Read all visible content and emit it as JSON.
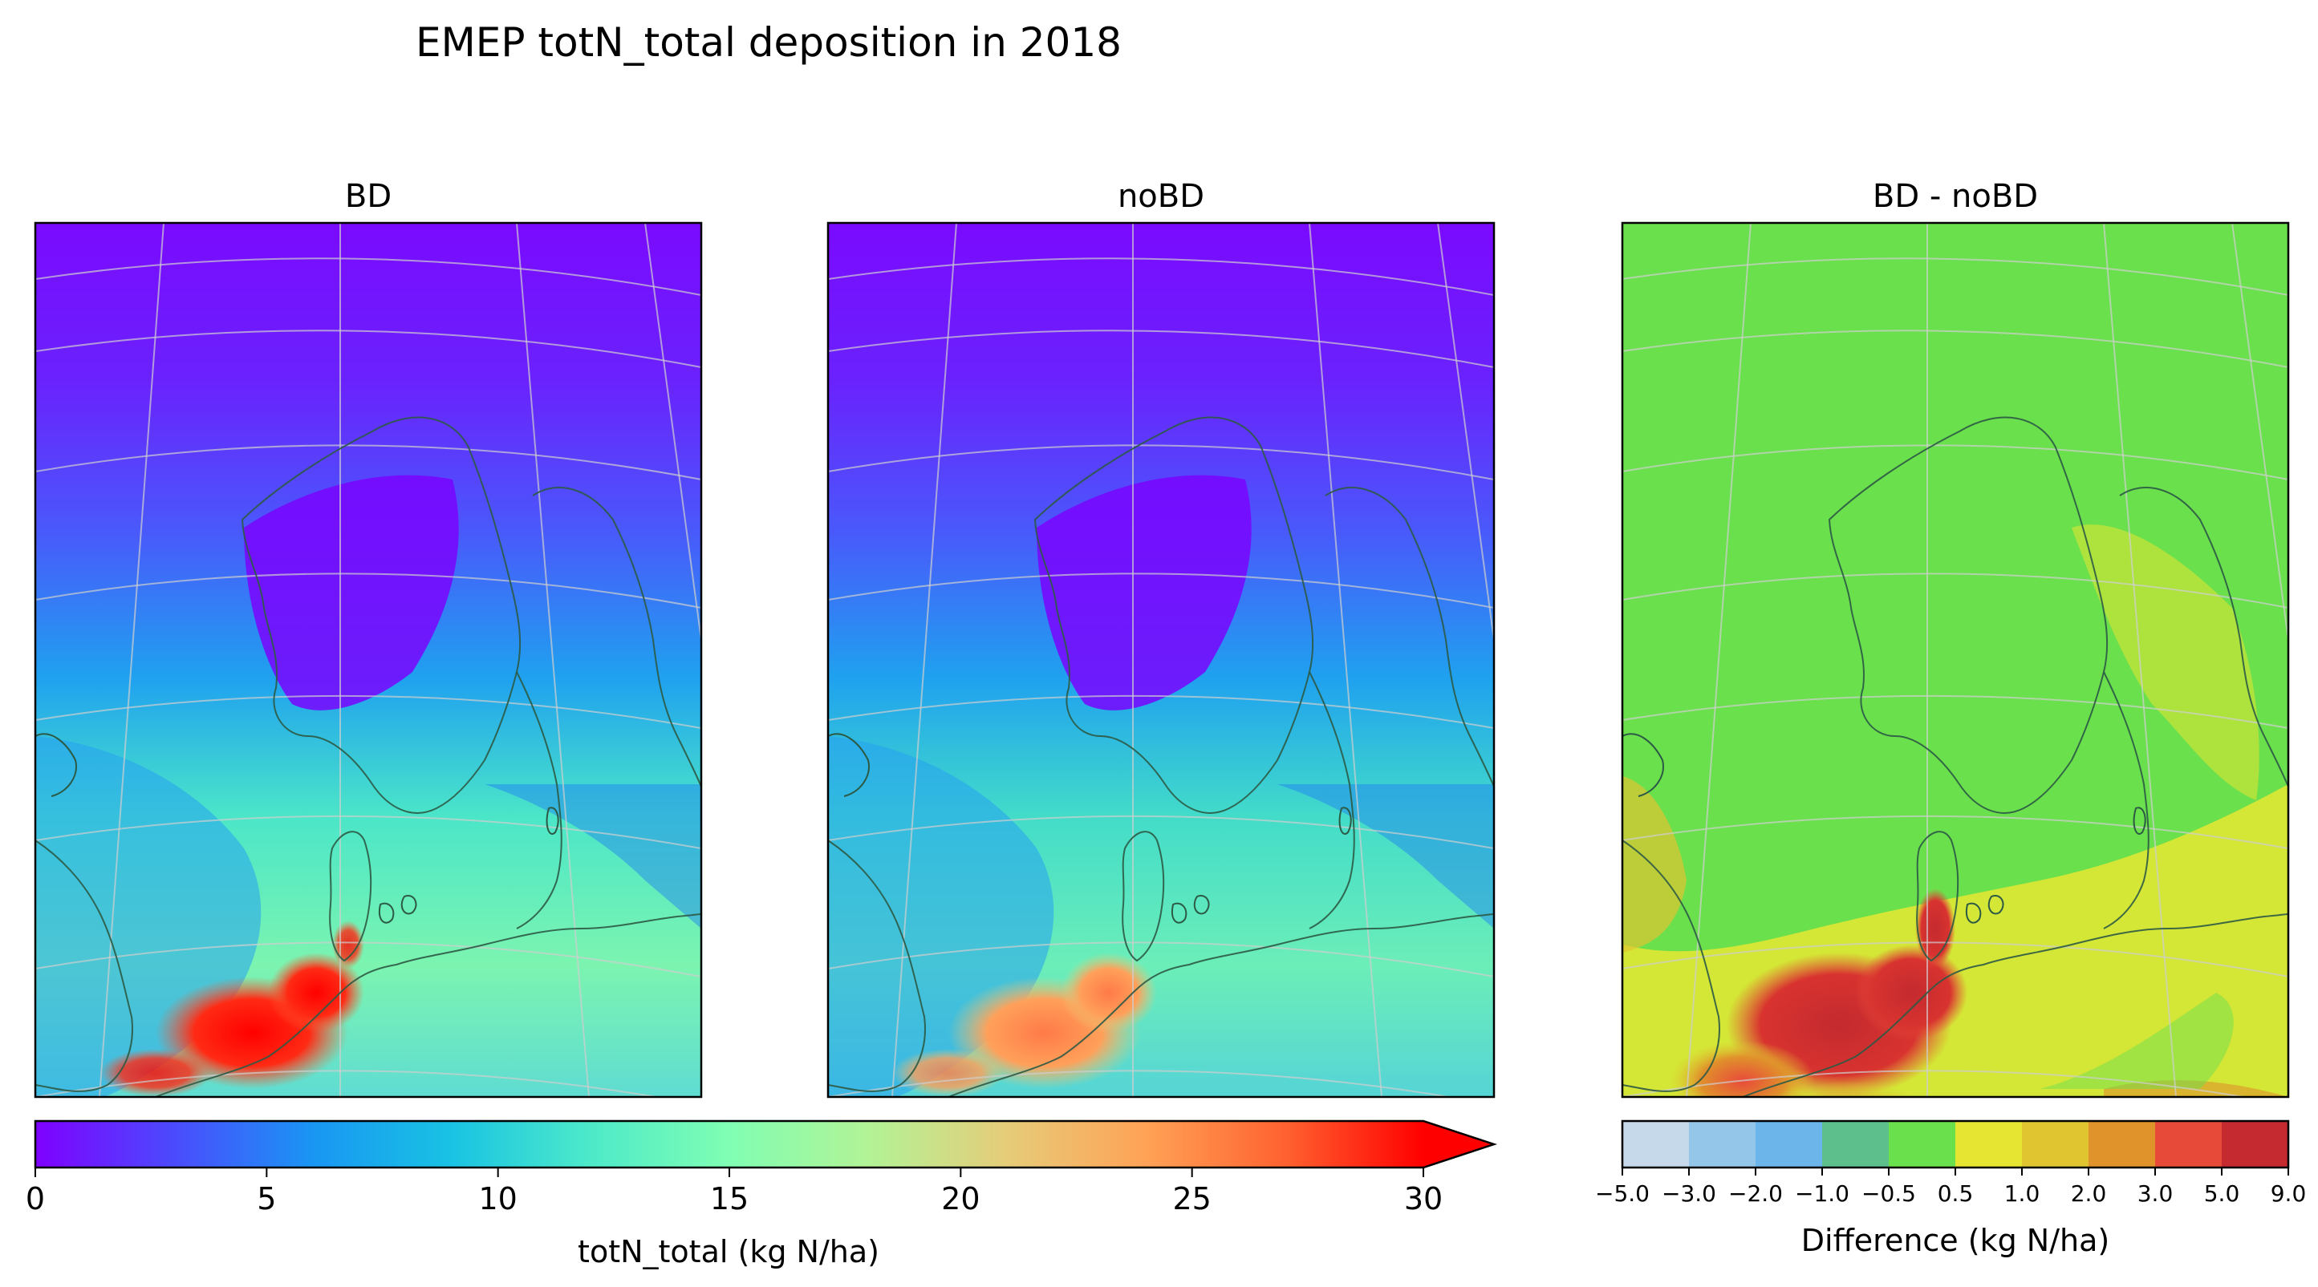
{
  "chart_data": {
    "title": "EMEP totN_total deposition in 2018",
    "panels": [
      {
        "type": "heatmap",
        "title": "BD",
        "variable": "totN_total",
        "colorbar_ref": "main"
      },
      {
        "type": "heatmap",
        "title": "noBD",
        "variable": "totN_total",
        "colorbar_ref": "main"
      },
      {
        "type": "heatmap",
        "title": "BD - noBD",
        "variable": "difference",
        "colorbar_ref": "diff"
      }
    ],
    "colorbars": {
      "main": {
        "label": "totN_total (kg N/ha)",
        "vmin": 0,
        "vmax": 30,
        "extend": "max",
        "ticks": [
          0,
          5,
          10,
          15,
          20,
          25,
          30
        ],
        "tick_labels": [
          "0",
          "5",
          "10",
          "15",
          "20",
          "25",
          "30"
        ],
        "colormap": "rainbow",
        "colors": [
          "#7f00ff",
          "#4b4bfd",
          "#1996f3",
          "#19c3e3",
          "#4deac9",
          "#80feb3",
          "#b2f396",
          "#e6cc79",
          "#ffa256",
          "#ff6230",
          "#ff0000"
        ],
        "extend_color": "#ff0000"
      },
      "diff": {
        "label": "Difference (kg N/ha)",
        "boundaries": [
          -5.0,
          -3.0,
          -2.0,
          -1.0,
          -0.5,
          0.5,
          1.0,
          2.0,
          3.0,
          5.0,
          9.0
        ],
        "tick_labels": [
          "−5.0",
          "−3.0",
          "−2.0",
          "−1.0",
          "−0.5",
          "0.5",
          "1.0",
          "2.0",
          "3.0",
          "5.0",
          "9.0"
        ],
        "colors": [
          "#c6d9ea",
          "#94c6ea",
          "#6bb5ea",
          "#5cbf8c",
          "#6be04d",
          "#e6e632",
          "#e0c530",
          "#e0922b",
          "#e84a3a",
          "#c42a2f"
        ]
      }
    },
    "map": {
      "region": "Northern Europe / North Sea / Baltic",
      "gridlines": true,
      "coastlines": true,
      "projection": "oblique"
    }
  }
}
